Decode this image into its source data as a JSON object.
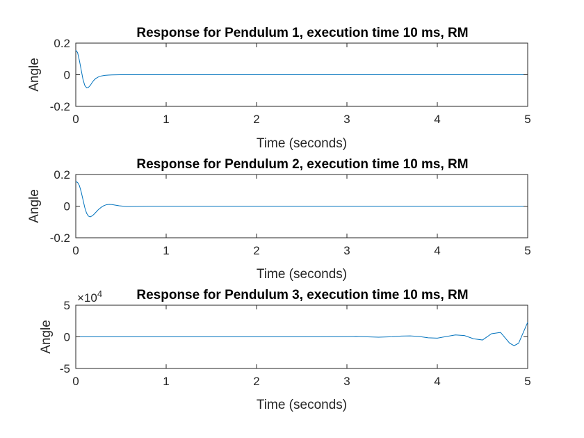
{
  "chart_data": [
    {
      "type": "line",
      "title": "Response for Pendulum 1, execution time 10 ms, RM",
      "xlabel": "Time (seconds)",
      "ylabel": "Angle",
      "xlim": [
        0,
        5
      ],
      "ylim": [
        -0.2,
        0.2
      ],
      "xticks": [
        0,
        1,
        2,
        3,
        4,
        5
      ],
      "xtick_labels": [
        "0",
        "1",
        "2",
        "3",
        "4",
        "5"
      ],
      "yticks": [
        0.2,
        0,
        -0.2
      ],
      "ytick_labels": [
        "0.2",
        "0",
        "-0.2"
      ],
      "color": "#0072BD",
      "grid": false,
      "series": [
        {
          "x": [
            0,
            0.02,
            0.04,
            0.06,
            0.08,
            0.1,
            0.12,
            0.14,
            0.16,
            0.18,
            0.2,
            0.22,
            0.25,
            0.28,
            0.32,
            0.36,
            0.4,
            0.5,
            0.6,
            0.8,
            1.0,
            1.5,
            2,
            3,
            4,
            5
          ],
          "y": [
            0.155,
            0.14,
            0.09,
            0.03,
            -0.03,
            -0.068,
            -0.082,
            -0.08,
            -0.068,
            -0.05,
            -0.035,
            -0.024,
            -0.014,
            -0.008,
            -0.004,
            -0.002,
            -0.001,
            0,
            0,
            0,
            0,
            0,
            0,
            0,
            0,
            0
          ]
        }
      ]
    },
    {
      "type": "line",
      "title": "Response for Pendulum 2, execution time 10 ms, RM",
      "xlabel": "Time (seconds)",
      "ylabel": "Angle",
      "xlim": [
        0,
        5
      ],
      "ylim": [
        -0.2,
        0.2
      ],
      "xticks": [
        0,
        1,
        2,
        3,
        4,
        5
      ],
      "xtick_labels": [
        "0",
        "1",
        "2",
        "3",
        "4",
        "5"
      ],
      "yticks": [
        0.2,
        0,
        -0.2
      ],
      "ytick_labels": [
        "0.2",
        "0",
        "-0.2"
      ],
      "color": "#0072BD",
      "grid": false,
      "series": [
        {
          "x": [
            0,
            0.02,
            0.04,
            0.06,
            0.08,
            0.1,
            0.12,
            0.14,
            0.16,
            0.18,
            0.2,
            0.22,
            0.25,
            0.28,
            0.31,
            0.34,
            0.37,
            0.4,
            0.44,
            0.48,
            0.52,
            0.56,
            0.6,
            0.7,
            0.8,
            1.0,
            1.5,
            2,
            3,
            4,
            5
          ],
          "y": [
            0.155,
            0.15,
            0.13,
            0.09,
            0.04,
            -0.01,
            -0.045,
            -0.063,
            -0.068,
            -0.062,
            -0.052,
            -0.04,
            -0.022,
            -0.008,
            0.003,
            0.009,
            0.011,
            0.01,
            0.006,
            0.002,
            0,
            -0.002,
            -0.002,
            -0.001,
            0,
            0,
            0,
            0,
            0,
            0,
            0
          ]
        }
      ]
    },
    {
      "type": "line",
      "title": "Response for Pendulum 3, execution time 10 ms, RM",
      "xlabel": "Time (seconds)",
      "ylabel": "Angle",
      "xlim": [
        0,
        5
      ],
      "ylim": [
        -5,
        5
      ],
      "xticks": [
        0,
        1,
        2,
        3,
        4,
        5
      ],
      "xtick_labels": [
        "0",
        "1",
        "2",
        "3",
        "4",
        "5"
      ],
      "yticks": [
        5,
        0,
        -5
      ],
      "ytick_labels": [
        "5",
        "0",
        "-5"
      ],
      "exponent_label": "×10",
      "exponent_power": "4",
      "color": "#0072BD",
      "grid": false,
      "series": [
        {
          "x": [
            0,
            0.5,
            1,
            1.5,
            2,
            2.5,
            2.8,
            3.0,
            3.1,
            3.2,
            3.35,
            3.5,
            3.6,
            3.7,
            3.8,
            3.9,
            4.0,
            4.08,
            4.2,
            4.3,
            4.4,
            4.5,
            4.6,
            4.7,
            4.8,
            4.85,
            4.9,
            5.0
          ],
          "y": [
            0,
            0,
            0,
            0,
            0,
            0,
            0.01,
            0.03,
            0.05,
            0.02,
            -0.05,
            0.02,
            0.12,
            0.15,
            0.05,
            -0.15,
            -0.2,
            0,
            0.3,
            0.2,
            -0.3,
            -0.5,
            0.5,
            0.7,
            -1.0,
            -1.4,
            -1.0,
            2.3
          ]
        }
      ]
    }
  ]
}
